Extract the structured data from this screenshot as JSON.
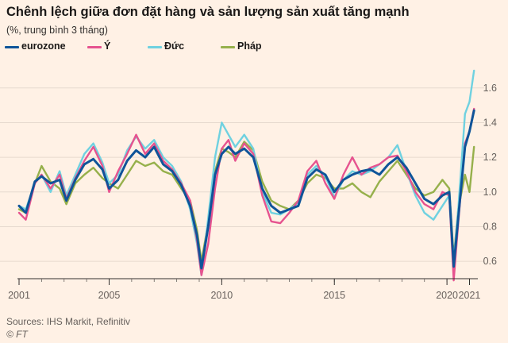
{
  "header": {
    "title": "Chênh lệch giữa đơn đặt hàng và sản lượng sản xuất tăng mạnh",
    "subtitle": "(%, trung bình 3 tháng)"
  },
  "footer": {
    "source": "Sources: IHS Markit, Refinitiv",
    "credit": "© FT"
  },
  "chart_data": {
    "type": "line",
    "title": "Chênh lệch giữa đơn đặt hàng và sản lượng sản xuất tăng mạnh",
    "subtitle": "(%, trung bình 3 tháng)",
    "xlabel": "",
    "ylabel": "",
    "xlim": [
      2001,
      2021.3
    ],
    "ylim": [
      0.5,
      1.75
    ],
    "y_ticks": [
      0.6,
      0.8,
      1.0,
      1.2,
      1.4,
      1.6
    ],
    "y_tick_labels": [
      "0.6",
      "0.8",
      "1.0",
      "1.2",
      "1.4",
      "1.6"
    ],
    "y_axis_position": "right",
    "x_ticks": [
      2001,
      2005,
      2010,
      2015,
      2020,
      2021
    ],
    "x_tick_labels": [
      "2001",
      "2005",
      "2010",
      "2015",
      "2020",
      "2021"
    ],
    "grid": "horizontal",
    "legend_position": "top",
    "series": [
      {
        "name": "eurozone",
        "color": "#0f5499",
        "x": [
          2001.0,
          2001.3,
          2001.7,
          2002.0,
          2002.4,
          2002.8,
          2003.1,
          2003.5,
          2003.9,
          2004.3,
          2004.7,
          2005.0,
          2005.4,
          2005.8,
          2006.2,
          2006.6,
          2007.0,
          2007.4,
          2007.8,
          2008.2,
          2008.6,
          2008.9,
          2009.1,
          2009.4,
          2009.7,
          2010.0,
          2010.3,
          2010.6,
          2011.0,
          2011.4,
          2011.8,
          2012.2,
          2012.6,
          2013.0,
          2013.4,
          2013.8,
          2014.2,
          2014.6,
          2015.0,
          2015.4,
          2015.8,
          2016.2,
          2016.6,
          2017.0,
          2017.4,
          2017.8,
          2018.2,
          2018.6,
          2019.0,
          2019.4,
          2019.8,
          2020.1,
          2020.3,
          2020.5,
          2020.8,
          2021.0,
          2021.2
        ],
        "y": [
          0.92,
          0.88,
          1.06,
          1.09,
          1.05,
          1.07,
          0.95,
          1.07,
          1.16,
          1.19,
          1.13,
          1.02,
          1.07,
          1.18,
          1.24,
          1.2,
          1.26,
          1.16,
          1.12,
          1.04,
          0.92,
          0.75,
          0.56,
          0.8,
          1.1,
          1.22,
          1.26,
          1.22,
          1.25,
          1.2,
          1.02,
          0.92,
          0.88,
          0.9,
          0.92,
          1.08,
          1.13,
          1.1,
          1.0,
          1.07,
          1.1,
          1.12,
          1.13,
          1.1,
          1.16,
          1.2,
          1.14,
          1.05,
          0.96,
          0.93,
          0.98,
          1.0,
          0.57,
          0.85,
          1.26,
          1.35,
          1.47
        ]
      },
      {
        "name": "Ý",
        "color": "#e6538f",
        "x": [
          2001.0,
          2001.3,
          2001.7,
          2002.0,
          2002.4,
          2002.8,
          2003.1,
          2003.5,
          2003.9,
          2004.3,
          2004.7,
          2005.0,
          2005.4,
          2005.8,
          2006.2,
          2006.6,
          2007.0,
          2007.4,
          2007.8,
          2008.2,
          2008.6,
          2008.9,
          2009.1,
          2009.4,
          2009.7,
          2010.0,
          2010.3,
          2010.6,
          2011.0,
          2011.4,
          2011.8,
          2012.2,
          2012.6,
          2013.0,
          2013.4,
          2013.8,
          2014.2,
          2014.6,
          2015.0,
          2015.4,
          2015.8,
          2016.2,
          2016.6,
          2017.0,
          2017.4,
          2017.8,
          2018.2,
          2018.6,
          2019.0,
          2019.4,
          2019.8,
          2020.1,
          2020.3,
          2020.5,
          2020.8,
          2021.0,
          2021.2
        ],
        "y": [
          0.88,
          0.84,
          1.05,
          1.1,
          1.02,
          1.1,
          0.96,
          1.08,
          1.18,
          1.26,
          1.15,
          1.0,
          1.12,
          1.22,
          1.33,
          1.22,
          1.28,
          1.18,
          1.13,
          1.05,
          0.95,
          0.72,
          0.52,
          0.7,
          1.02,
          1.25,
          1.3,
          1.18,
          1.28,
          1.22,
          0.98,
          0.83,
          0.82,
          0.88,
          0.95,
          1.12,
          1.18,
          1.05,
          0.96,
          1.1,
          1.2,
          1.1,
          1.14,
          1.16,
          1.2,
          1.21,
          1.12,
          1.0,
          0.93,
          0.9,
          1.0,
          0.98,
          0.49,
          0.82,
          1.28,
          1.35,
          1.48
        ]
      },
      {
        "name": "Đức",
        "color": "#6fd1e0",
        "x": [
          2001.0,
          2001.3,
          2001.7,
          2002.0,
          2002.4,
          2002.8,
          2003.1,
          2003.5,
          2003.9,
          2004.3,
          2004.7,
          2005.0,
          2005.4,
          2005.8,
          2006.2,
          2006.6,
          2007.0,
          2007.4,
          2007.8,
          2008.2,
          2008.6,
          2008.9,
          2009.1,
          2009.4,
          2009.7,
          2010.0,
          2010.3,
          2010.6,
          2011.0,
          2011.4,
          2011.8,
          2012.2,
          2012.6,
          2013.0,
          2013.4,
          2013.8,
          2014.2,
          2014.6,
          2015.0,
          2015.4,
          2015.8,
          2016.2,
          2016.6,
          2017.0,
          2017.4,
          2017.8,
          2018.2,
          2018.6,
          2019.0,
          2019.4,
          2019.8,
          2020.1,
          2020.3,
          2020.5,
          2020.8,
          2021.0,
          2021.2
        ],
        "y": [
          0.92,
          0.9,
          1.05,
          1.1,
          1.0,
          1.12,
          0.98,
          1.1,
          1.22,
          1.28,
          1.17,
          1.05,
          1.1,
          1.24,
          1.32,
          1.25,
          1.3,
          1.2,
          1.15,
          1.06,
          0.9,
          0.7,
          0.52,
          0.85,
          1.2,
          1.4,
          1.33,
          1.26,
          1.33,
          1.25,
          1.0,
          0.88,
          0.87,
          0.9,
          0.94,
          1.1,
          1.15,
          1.09,
          0.97,
          1.07,
          1.12,
          1.1,
          1.12,
          1.16,
          1.2,
          1.27,
          1.12,
          0.98,
          0.88,
          0.84,
          0.92,
          0.98,
          0.6,
          0.9,
          1.45,
          1.52,
          1.7
        ]
      },
      {
        "name": "Pháp",
        "color": "#96b04b",
        "x": [
          2001.0,
          2001.3,
          2001.7,
          2002.0,
          2002.4,
          2002.8,
          2003.1,
          2003.5,
          2003.9,
          2004.3,
          2004.7,
          2005.0,
          2005.4,
          2005.8,
          2006.2,
          2006.6,
          2007.0,
          2007.4,
          2007.8,
          2008.2,
          2008.6,
          2008.9,
          2009.1,
          2009.4,
          2009.7,
          2010.0,
          2010.3,
          2010.6,
          2011.0,
          2011.4,
          2011.8,
          2012.2,
          2012.6,
          2013.0,
          2013.4,
          2013.8,
          2014.2,
          2014.6,
          2015.0,
          2015.4,
          2015.8,
          2016.2,
          2016.6,
          2017.0,
          2017.4,
          2017.8,
          2018.2,
          2018.6,
          2019.0,
          2019.4,
          2019.8,
          2020.1,
          2020.3,
          2020.5,
          2020.8,
          2021.0,
          2021.2
        ],
        "y": [
          0.9,
          0.88,
          1.05,
          1.15,
          1.06,
          1.02,
          0.93,
          1.05,
          1.1,
          1.14,
          1.08,
          1.05,
          1.02,
          1.1,
          1.18,
          1.15,
          1.17,
          1.12,
          1.1,
          1.02,
          0.95,
          0.78,
          0.6,
          0.82,
          1.12,
          1.25,
          1.23,
          1.2,
          1.29,
          1.24,
          1.06,
          0.95,
          0.92,
          0.9,
          0.95,
          1.05,
          1.1,
          1.08,
          1.02,
          1.02,
          1.05,
          1.0,
          0.97,
          1.06,
          1.12,
          1.18,
          1.1,
          1.02,
          0.98,
          1.0,
          1.07,
          1.02,
          0.62,
          0.9,
          1.1,
          1.0,
          1.26
        ]
      }
    ]
  }
}
